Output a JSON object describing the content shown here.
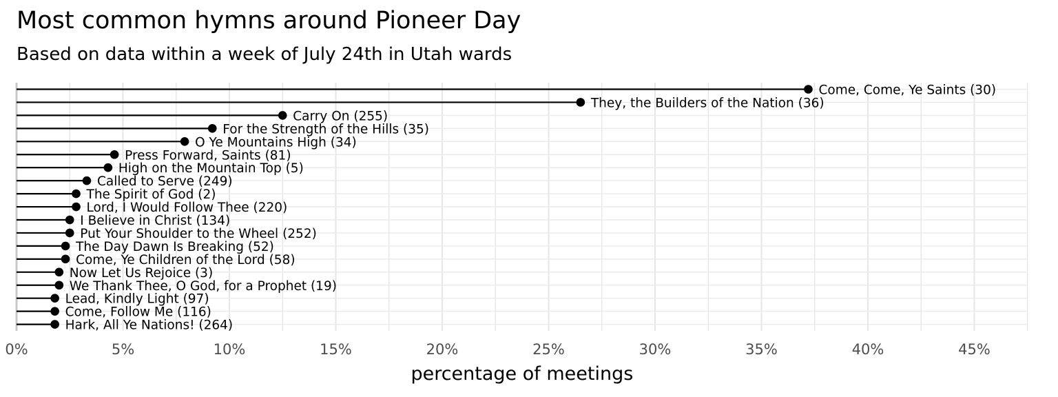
{
  "chart_data": {
    "type": "lollipop",
    "title": "Most common hymns around Pioneer Day",
    "subtitle": "Based on data within a week of July 24th in Utah wards",
    "xlabel": "percentage of meetings",
    "ylabel": "",
    "xlim": [
      0,
      47.5
    ],
    "x_ticks": [
      0,
      5,
      10,
      15,
      20,
      25,
      30,
      35,
      40,
      45
    ],
    "x_tick_labels": [
      "0%",
      "5%",
      "10%",
      "15%",
      "20%",
      "25%",
      "30%",
      "35%",
      "40%",
      "45%"
    ],
    "grid": true,
    "categories": [
      "Come, Come, Ye Saints (30)",
      "They, the Builders of the Nation (36)",
      "Carry On (255)",
      "For the Strength of the Hills (35)",
      "O Ye Mountains High (34)",
      "Press Forward, Saints (81)",
      "High on the Mountain Top (5)",
      "Called to Serve (249)",
      "The Spirit of God (2)",
      "Lord, I Would Follow Thee (220)",
      "I Believe in Christ (134)",
      "Put Your Shoulder to the Wheel (252)",
      "The Day Dawn Is Breaking (52)",
      "Come, Ye Children of the Lord (58)",
      "Now Let Us Rejoice (3)",
      "We Thank Thee, O God, for a Prophet (19)",
      "Lead, Kindly Light (97)",
      "Come, Follow Me (116)",
      "Hark, All Ye Nations! (264)"
    ],
    "values": [
      37.2,
      26.5,
      12.5,
      9.2,
      7.9,
      4.6,
      4.3,
      3.3,
      2.8,
      2.8,
      2.5,
      2.5,
      2.3,
      2.3,
      2.0,
      2.0,
      1.8,
      1.8,
      1.8
    ]
  }
}
